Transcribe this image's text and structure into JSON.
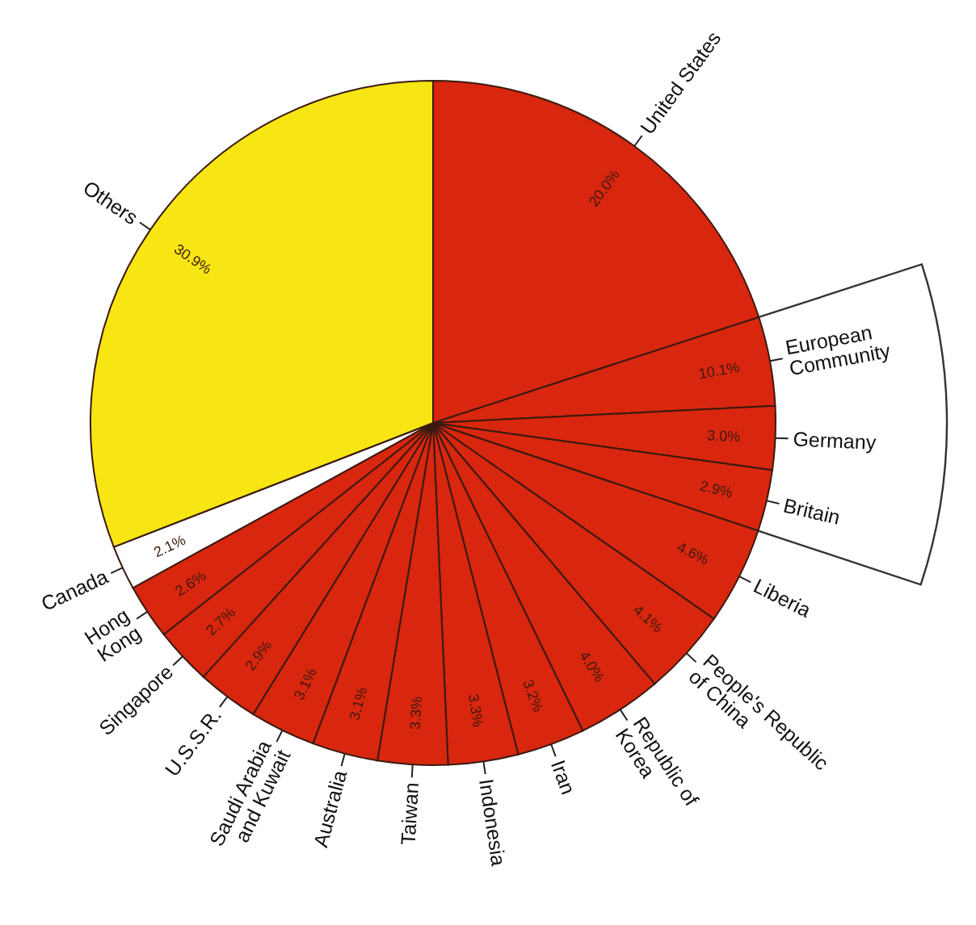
{
  "chart_data": {
    "type": "pie",
    "categories": [
      "United States",
      "European\nCommunity",
      "Germany",
      "Britain",
      "Liberia",
      "People's Republic\nof China",
      "Republic of\nKorea",
      "Iran",
      "Indonesia",
      "Taiwan",
      "Australia",
      "Saudi Arabia\nand Kuwait",
      "U.S.S.R.",
      "Singapore",
      "Hong\nKong",
      "Canada",
      "Others"
    ],
    "values": [
      20.0,
      4.2,
      3.0,
      2.9,
      4.6,
      4.1,
      4.0,
      3.2,
      3.3,
      3.3,
      3.1,
      3.1,
      2.9,
      2.7,
      2.6,
      2.1,
      30.9
    ],
    "annotations": [
      "10.1%"
    ],
    "value_labels": [
      "20.0%",
      null,
      "3.0%",
      "2.9%",
      "4.6%",
      "4.1%",
      "4.0%",
      "3.2%",
      "3.3%",
      "3.3%",
      "3.1%",
      "3.1%",
      "2.9%",
      "2.7%",
      "2.6%",
      "2.1%",
      "30.9%"
    ],
    "colors": [
      "#d8260f",
      "#d8260f",
      "#d8260f",
      "#d8260f",
      "#d8260f",
      "#d8260f",
      "#d8260f",
      "#d8260f",
      "#d8260f",
      "#d8260f",
      "#d8260f",
      "#d8260f",
      "#d8260f",
      "#d8260f",
      "#d8260f",
      "#ffffff",
      "#f7e613"
    ]
  }
}
